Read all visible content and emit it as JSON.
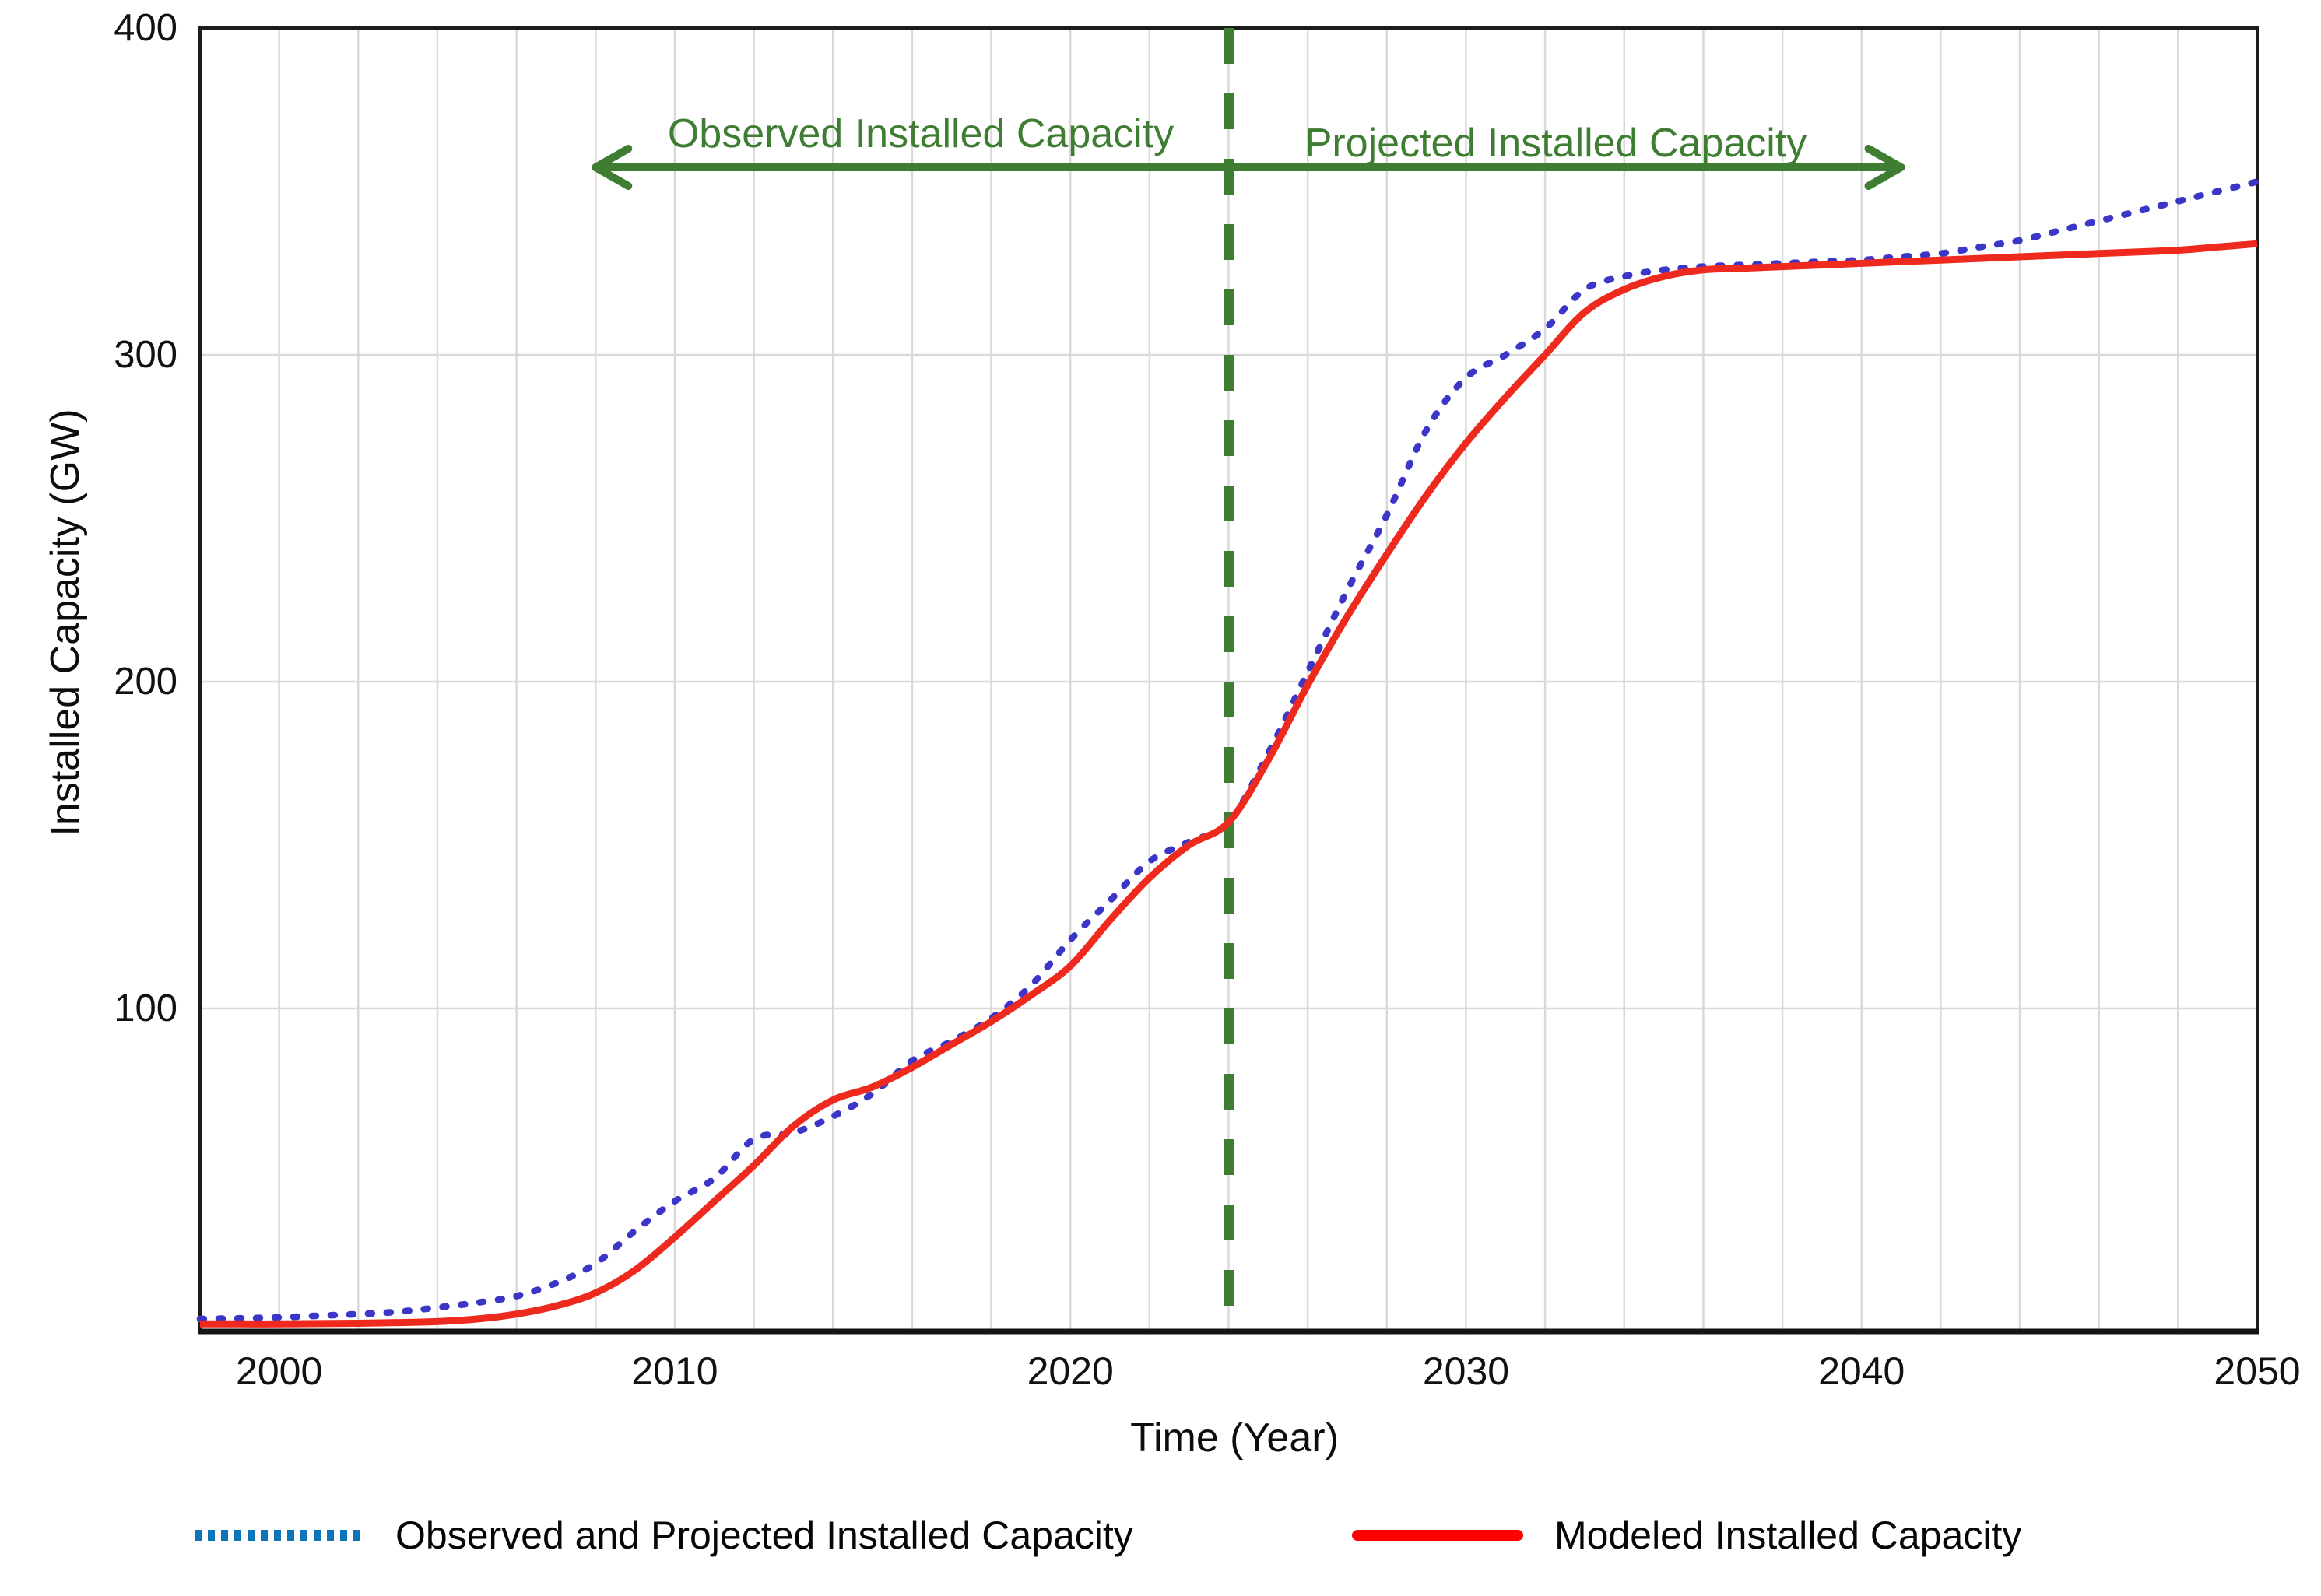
{
  "axes": {
    "x_label": "Time (Year)",
    "y_label": "Installed Capacity (GW)",
    "x_ticks": [
      2000,
      2010,
      2020,
      2030,
      2040,
      2050
    ],
    "y_ticks": [
      100,
      200,
      300,
      400
    ]
  },
  "annotations": {
    "observed_label": "Observed Installed Capacity",
    "projected_label": "Projected Installed Capacity"
  },
  "legend": {
    "items": [
      {
        "label": "Observed and Projected Installed Capacity",
        "swatch": "dotted-blue-line-icon",
        "color": "#0e74b8"
      },
      {
        "label": "Modeled Installed Capacity",
        "swatch": "solid-red-line-icon",
        "color": "#fe0000"
      }
    ]
  },
  "colors": {
    "observed_series": "#3b35c8",
    "modeled_series": "#ee2a1f",
    "annotation_green": "#3e7d32",
    "gridline": "#d9d9d9",
    "spine": "#1c1c1c",
    "legend_blue": "#0e74b8",
    "legend_red": "#fe0000"
  },
  "chart_data": {
    "type": "line",
    "title": "",
    "xlabel": "Time (Year)",
    "ylabel": "Installed Capacity (GW)",
    "xlim": [
      1998,
      2050
    ],
    "ylim": [
      0,
      400
    ],
    "grid": true,
    "x_gridline_step_years": 2,
    "y_gridline_step_gw": 100,
    "legend_position": "bottom",
    "divider_year": 2024,
    "divider_value_gw": 157,
    "arrow_span_years": [
      2008,
      2041
    ],
    "x": [
      1998,
      1999,
      2000,
      2001,
      2002,
      2003,
      2004,
      2005,
      2006,
      2007,
      2008,
      2009,
      2010,
      2011,
      2012,
      2013,
      2014,
      2015,
      2016,
      2017,
      2018,
      2019,
      2020,
      2021,
      2022,
      2023,
      2024,
      2025,
      2026,
      2027,
      2028,
      2029,
      2030,
      2031,
      2032,
      2033,
      2034,
      2035,
      2036,
      2037,
      2038,
      2039,
      2040,
      2041,
      2042,
      2043,
      2044,
      2045,
      2046,
      2047,
      2048,
      2049,
      2050
    ],
    "series": [
      {
        "name": "Observed and Projected Installed Capacity",
        "style": "dotted",
        "color": "#3b35c8",
        "values": [
          5,
          5.2,
          5.5,
          6,
          6.5,
          7.2,
          8.5,
          10,
          12,
          16,
          22,
          32,
          41,
          48,
          60,
          62,
          67,
          74,
          84,
          90,
          97,
          107,
          121,
          133,
          145,
          151,
          157,
          178,
          203,
          228,
          251,
          277,
          293,
          300,
          308,
          320,
          324,
          326,
          327,
          327.5,
          328,
          328.5,
          329,
          330,
          331,
          333,
          335,
          338,
          341,
          344,
          347,
          350,
          353
        ]
      },
      {
        "name": "Modeled Installed Capacity",
        "style": "solid",
        "color": "#ee2a1f",
        "values": [
          3.5,
          3.5,
          3.5,
          3.6,
          3.7,
          3.9,
          4.2,
          5,
          6.5,
          9,
          13,
          20,
          30,
          41,
          52,
          64,
          72,
          76,
          82,
          89,
          96,
          104,
          113,
          127,
          140,
          150,
          157,
          176,
          199,
          220,
          239,
          257,
          273,
          287,
          300,
          313,
          320,
          324,
          326,
          326.5,
          327,
          327.5,
          328,
          328.5,
          329,
          329.5,
          330,
          330.5,
          331,
          331.5,
          332,
          333,
          334
        ]
      }
    ]
  }
}
